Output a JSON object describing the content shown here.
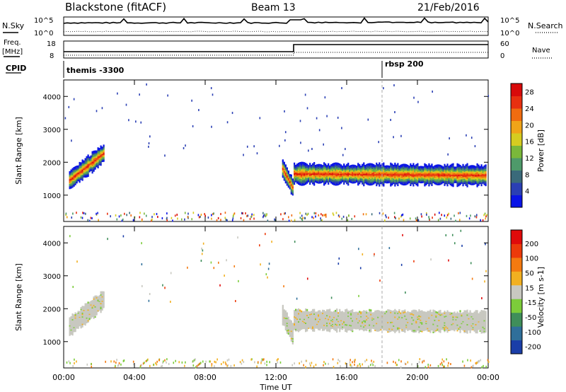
{
  "header": {
    "station": "Blackstone (fitACF)",
    "beam": "Beam 13",
    "date": "21/Feb/2016"
  },
  "summary": {
    "nsky_label": "N.Sky",
    "nsearch_label": "N.Search",
    "freq_label_line1": "Freq.",
    "freq_label_line2": "[MHz]",
    "nave_label": "Nave",
    "cpid_label": "CPID",
    "noise_ticks": [
      "10^5",
      "10^0"
    ],
    "freq_ticks": [
      "18",
      "8"
    ],
    "nave_ticks": [
      "60",
      "0"
    ],
    "cpid_segments": [
      {
        "name": "themis -3300",
        "start_hour": 0.0
      },
      {
        "name": "rbsp 200",
        "start_hour": 18.0
      }
    ]
  },
  "chart_data": [
    {
      "type": "heatmap",
      "panel": "power",
      "ylabel": "Slant Range [km]",
      "y_ticks": [
        1000,
        2000,
        3000,
        4000
      ],
      "ylim": [
        200,
        4500
      ],
      "xlim": [
        0,
        24
      ],
      "colorbar": {
        "label": "Power [dB]",
        "ticks": [
          "4",
          "8",
          "12",
          "16",
          "20",
          "24",
          "28"
        ],
        "colors": [
          "#0a14e6",
          "#2a3fb4",
          "#3a6a7a",
          "#4e9a6a",
          "#7ab83a",
          "#d6cc20",
          "#f0a418",
          "#f06c10",
          "#e83010",
          "#d80a0a"
        ],
        "range": [
          0,
          30
        ]
      },
      "echo_regions": [
        {
          "t0": 0.3,
          "t1": 2.3,
          "center_start_km": 1450,
          "center_end_km": 2300,
          "halfwidth_km": 260
        },
        {
          "t0": 12.35,
          "t1": 12.95,
          "center_start_km": 1800,
          "center_end_km": 1200,
          "halfwidth_km": 260
        },
        {
          "t0": 13.0,
          "t1": 23.9,
          "center_start_km": 1650,
          "center_end_km": 1600,
          "halfwidth_km": 280
        }
      ]
    },
    {
      "type": "heatmap",
      "panel": "velocity",
      "ylabel": "Slant Range [km]",
      "y_ticks": [
        1000,
        2000,
        3000,
        4000
      ],
      "ylim": [
        200,
        4500
      ],
      "xlim": [
        0,
        24
      ],
      "colorbar": {
        "label": "Velocity [m s-1]",
        "ticks": [
          "200",
          "100",
          "50",
          "15",
          "-15",
          "-50",
          "-100",
          "-200"
        ],
        "colors": [
          "#1a3ea8",
          "#2f6f9a",
          "#3f8e5a",
          "#7ccc3a",
          "#c8c8c0",
          "#f2b020",
          "#f47a10",
          "#ec3a0a",
          "#e00a0a"
        ],
        "range": [
          -250,
          250
        ]
      },
      "echo_regions": [
        {
          "t0": 0.3,
          "t1": 2.3,
          "center_start_km": 1450,
          "center_end_km": 2300,
          "halfwidth_km": 260
        },
        {
          "t0": 12.35,
          "t1": 12.95,
          "center_start_km": 1800,
          "center_end_km": 1200,
          "halfwidth_km": 260
        },
        {
          "t0": 13.0,
          "t1": 23.9,
          "center_start_km": 1650,
          "center_end_km": 1600,
          "halfwidth_km": 280
        }
      ]
    }
  ],
  "time_axis": {
    "tick_labels": [
      "00:00",
      "04:00",
      "08:00",
      "12:00",
      "16:00",
      "20:00",
      "00:00"
    ],
    "tick_hours": [
      0,
      4,
      8,
      12,
      16,
      20,
      24
    ],
    "label": "Time UT"
  }
}
